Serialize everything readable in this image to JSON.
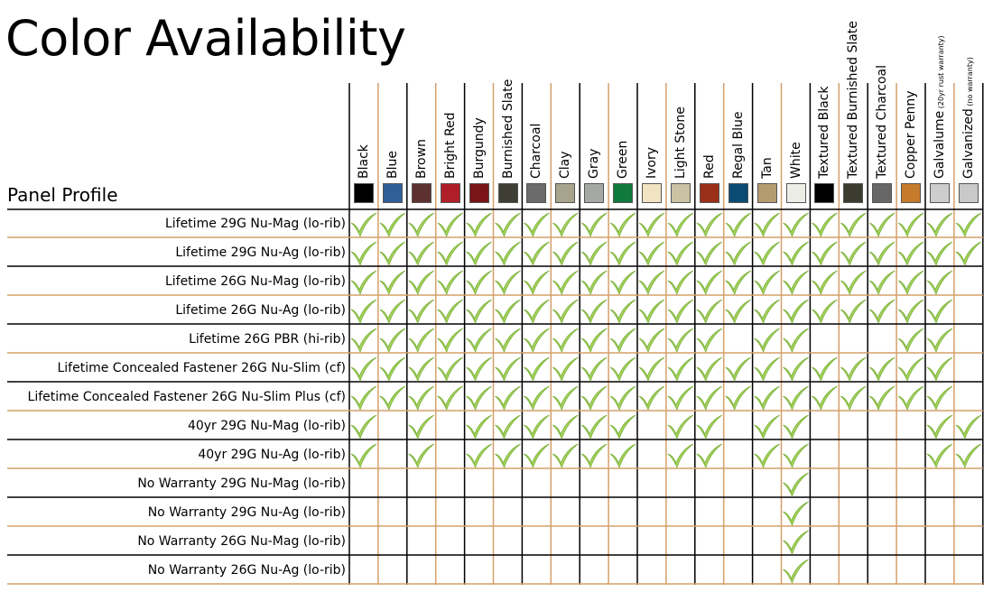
{
  "title": "Color Availability",
  "profile_header": "Panel Profile",
  "colors": [
    {
      "name": "Black",
      "swatch": "#000000"
    },
    {
      "name": "Blue",
      "swatch": "#2f5f96"
    },
    {
      "name": "Brown",
      "swatch": "#5e3131"
    },
    {
      "name": "Bright Red",
      "swatch": "#b01e2a"
    },
    {
      "name": "Burgundy",
      "swatch": "#7a1416"
    },
    {
      "name": "Burnished Slate",
      "swatch": "#3e3e34"
    },
    {
      "name": "Charcoal",
      "swatch": "#6b6b6b"
    },
    {
      "name": "Clay",
      "swatch": "#a7a38d"
    },
    {
      "name": "Gray",
      "swatch": "#a5a9a6"
    },
    {
      "name": "Green",
      "swatch": "#0f7a3c"
    },
    {
      "name": "Ivory",
      "swatch": "#f1e4c2"
    },
    {
      "name": "Light Stone",
      "swatch": "#c9c2a3"
    },
    {
      "name": "Red",
      "swatch": "#9c2f19"
    },
    {
      "name": "Regal Blue",
      "swatch": "#0b4a73"
    },
    {
      "name": "Tan",
      "swatch": "#b59b70"
    },
    {
      "name": "White",
      "swatch": "#eceee6"
    },
    {
      "name": "Textured Black",
      "swatch": "#000000"
    },
    {
      "name": "Textured Burnished Slate",
      "swatch": "#3b3b30"
    },
    {
      "name": "Textured Charcoal",
      "swatch": "#676767"
    },
    {
      "name": "Copper Penny",
      "swatch": "#c57a2c"
    },
    {
      "name": "Galvalume",
      "note": "(20yr rust warranty)",
      "swatch": "#cdcdcd"
    },
    {
      "name": "Galvanized",
      "note": "(no warranty)",
      "swatch": "#c9c9c9"
    }
  ],
  "rows": [
    {
      "label": "Lifetime 29G Nu-Mag (lo-rib)",
      "avail": [
        1,
        1,
        1,
        1,
        1,
        1,
        1,
        1,
        1,
        1,
        1,
        1,
        1,
        1,
        1,
        1,
        1,
        1,
        1,
        1,
        1,
        1
      ]
    },
    {
      "label": "Lifetime 29G Nu-Ag (lo-rib)",
      "avail": [
        1,
        1,
        1,
        1,
        1,
        1,
        1,
        1,
        1,
        1,
        1,
        1,
        1,
        1,
        1,
        1,
        1,
        1,
        1,
        1,
        1,
        1
      ]
    },
    {
      "label": "Lifetime 26G Nu-Mag (lo-rib)",
      "avail": [
        1,
        1,
        1,
        1,
        1,
        1,
        1,
        1,
        1,
        1,
        1,
        1,
        1,
        1,
        1,
        1,
        1,
        1,
        1,
        1,
        1,
        0
      ]
    },
    {
      "label": "Lifetime 26G Nu-Ag (lo-rib)",
      "avail": [
        1,
        1,
        1,
        1,
        1,
        1,
        1,
        1,
        1,
        1,
        1,
        1,
        1,
        1,
        1,
        1,
        1,
        1,
        1,
        1,
        1,
        0
      ]
    },
    {
      "label": "Lifetime 26G PBR (hi-rib)",
      "avail": [
        1,
        1,
        1,
        1,
        1,
        1,
        1,
        1,
        1,
        1,
        1,
        1,
        1,
        0,
        1,
        1,
        0,
        0,
        0,
        1,
        1,
        0
      ]
    },
    {
      "label": "Lifetime Concealed Fastener 26G Nu-Slim (cf)",
      "avail": [
        1,
        1,
        1,
        1,
        1,
        1,
        1,
        1,
        1,
        1,
        1,
        1,
        1,
        1,
        1,
        1,
        1,
        1,
        1,
        1,
        1,
        0
      ]
    },
    {
      "label": "Lifetime Concealed Fastener 26G Nu-Slim Plus (cf)",
      "avail": [
        1,
        1,
        1,
        1,
        1,
        1,
        1,
        1,
        1,
        1,
        1,
        1,
        1,
        1,
        1,
        1,
        1,
        1,
        1,
        1,
        1,
        0
      ]
    },
    {
      "label": "40yr 29G Nu-Mag (lo-rib)",
      "avail": [
        1,
        0,
        1,
        0,
        1,
        1,
        1,
        1,
        1,
        1,
        0,
        1,
        1,
        0,
        1,
        1,
        0,
        0,
        0,
        0,
        1,
        1
      ]
    },
    {
      "label": "40yr 29G Nu-Ag (lo-rib)",
      "avail": [
        1,
        0,
        1,
        0,
        1,
        1,
        1,
        1,
        1,
        1,
        0,
        1,
        1,
        0,
        1,
        1,
        0,
        0,
        0,
        0,
        1,
        1
      ]
    },
    {
      "label": "No Warranty 29G Nu-Mag (lo-rib)",
      "avail": [
        0,
        0,
        0,
        0,
        0,
        0,
        0,
        0,
        0,
        0,
        0,
        0,
        0,
        0,
        0,
        1,
        0,
        0,
        0,
        0,
        0,
        0
      ]
    },
    {
      "label": "No Warranty 29G Nu-Ag (lo-rib)",
      "avail": [
        0,
        0,
        0,
        0,
        0,
        0,
        0,
        0,
        0,
        0,
        0,
        0,
        0,
        0,
        0,
        1,
        0,
        0,
        0,
        0,
        0,
        0
      ]
    },
    {
      "label": "No Warranty 26G Nu-Mag (lo-rib)",
      "avail": [
        0,
        0,
        0,
        0,
        0,
        0,
        0,
        0,
        0,
        0,
        0,
        0,
        0,
        0,
        0,
        1,
        0,
        0,
        0,
        0,
        0,
        0
      ]
    },
    {
      "label": "No Warranty 26G Nu-Ag (lo-rib)",
      "avail": [
        0,
        0,
        0,
        0,
        0,
        0,
        0,
        0,
        0,
        0,
        0,
        0,
        0,
        0,
        0,
        1,
        0,
        0,
        0,
        0,
        0,
        0
      ]
    }
  ],
  "line_colors": {
    "black": "#000000",
    "tan": "#d4a06a"
  },
  "check_colors": {
    "fill": "#a5d35d",
    "stroke": "#7bb13a"
  }
}
